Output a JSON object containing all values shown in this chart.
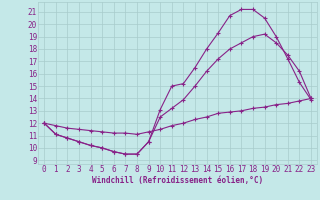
{
  "bg_color": "#c4e8e8",
  "grid_color": "#a8cccc",
  "line_color": "#882288",
  "xlim": [
    -0.5,
    23.5
  ],
  "ylim": [
    8.7,
    21.8
  ],
  "yticks": [
    9,
    10,
    11,
    12,
    13,
    14,
    15,
    16,
    17,
    18,
    19,
    20,
    21
  ],
  "xticks": [
    0,
    1,
    2,
    3,
    4,
    5,
    6,
    7,
    8,
    9,
    10,
    11,
    12,
    13,
    14,
    15,
    16,
    17,
    18,
    19,
    20,
    21,
    22,
    23
  ],
  "xlabel": "Windchill (Refroidissement éolien,°C)",
  "curve1_x": [
    0,
    1,
    2,
    3,
    4,
    5,
    6,
    7,
    8,
    9,
    10,
    11,
    12,
    13,
    14,
    15,
    16,
    17,
    18,
    19,
    20,
    21,
    22,
    23
  ],
  "curve1_y": [
    12.0,
    11.1,
    10.8,
    10.5,
    10.2,
    10.0,
    9.7,
    9.5,
    9.5,
    10.5,
    13.1,
    15.0,
    15.2,
    16.5,
    18.0,
    19.3,
    20.7,
    21.2,
    21.2,
    20.5,
    19.0,
    17.2,
    15.3,
    13.9
  ],
  "curve2_x": [
    0,
    1,
    2,
    3,
    4,
    5,
    6,
    7,
    8,
    9,
    10,
    11,
    12,
    13,
    14,
    15,
    16,
    17,
    18,
    19,
    20,
    21,
    22,
    23
  ],
  "curve2_y": [
    12.0,
    11.1,
    10.8,
    10.5,
    10.2,
    10.0,
    9.7,
    9.5,
    9.5,
    10.5,
    12.5,
    13.2,
    13.9,
    15.0,
    16.2,
    17.2,
    18.0,
    18.5,
    19.0,
    19.2,
    18.5,
    17.5,
    16.2,
    14.0
  ],
  "curve3_x": [
    0,
    1,
    2,
    3,
    4,
    5,
    6,
    7,
    8,
    9,
    10,
    11,
    12,
    13,
    14,
    15,
    16,
    17,
    18,
    19,
    20,
    21,
    22,
    23
  ],
  "curve3_y": [
    12.0,
    11.8,
    11.6,
    11.5,
    11.4,
    11.3,
    11.2,
    11.2,
    11.1,
    11.3,
    11.5,
    11.8,
    12.0,
    12.3,
    12.5,
    12.8,
    12.9,
    13.0,
    13.2,
    13.3,
    13.5,
    13.6,
    13.8,
    14.0
  ],
  "tick_fontsize": 5.5,
  "xlabel_fontsize": 5.5
}
